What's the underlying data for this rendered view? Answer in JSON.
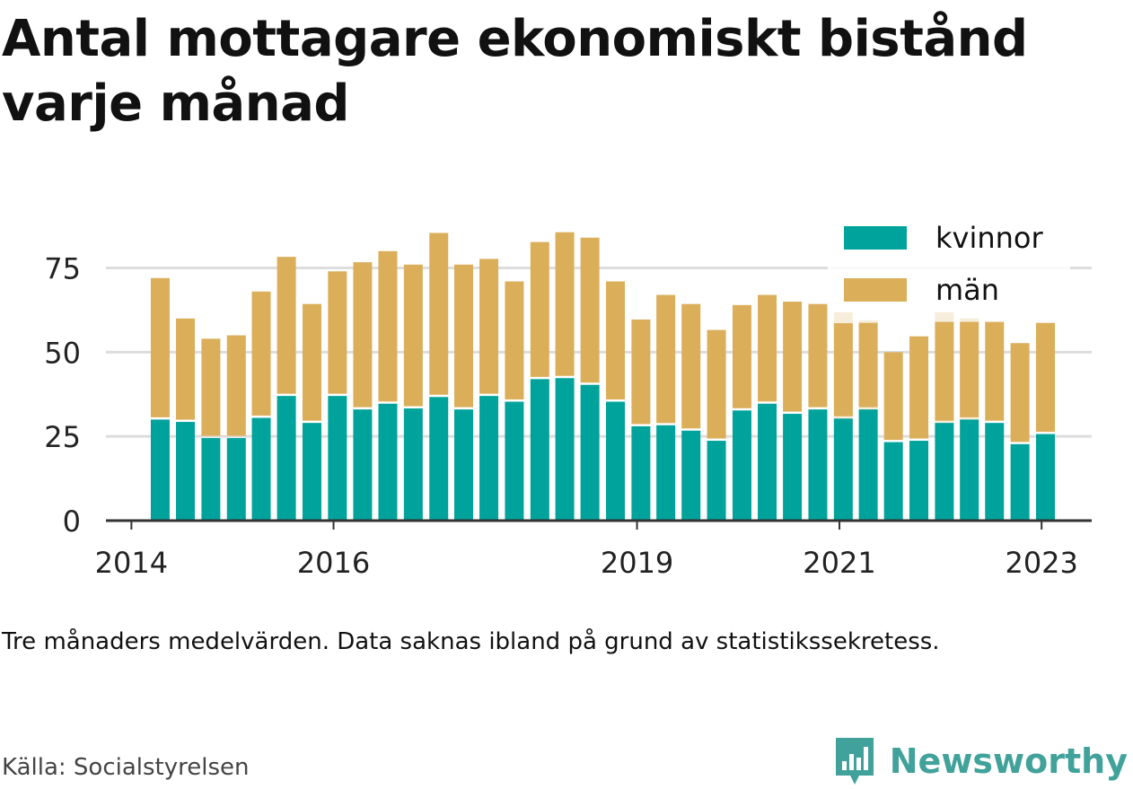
{
  "title": "Antal mottagare ekonomiskt bistånd varje månad",
  "note": "Tre månaders medelvärden. Data saknas ibland på grund av statistikssekretess.",
  "source": "Källa: Socialstyrelsen",
  "brand": {
    "name": "Newsworthy",
    "icon": "bar-chart-speech-bubble-icon",
    "color": "#40a29a"
  },
  "colors": {
    "kvinnor": "#00a39b",
    "man": "#dbae5a",
    "grid": "#dddddd",
    "axis": "#333333"
  },
  "chart_data": {
    "type": "bar",
    "stacked": true,
    "title": "Antal mottagare ekonomiskt bistånd varje månad",
    "xlabel": "",
    "ylabel": "",
    "ylim": [
      0,
      90
    ],
    "yticks": [
      0,
      25,
      50,
      75
    ],
    "grid": true,
    "legend_position": "top-right",
    "x_domain": [
      "2013-10-01",
      "2023-07-01"
    ],
    "x_ticks": [
      {
        "date": "2014-01-01",
        "label": "2014"
      },
      {
        "date": "2016-01-01",
        "label": "2016"
      },
      {
        "date": "2019-01-01",
        "label": "2019"
      },
      {
        "date": "2021-01-01",
        "label": "2021"
      },
      {
        "date": "2023-01-01",
        "label": "2023"
      }
    ],
    "categories": [
      "2014-04",
      "2014-07",
      "2014-10",
      "2015-01",
      "2015-04",
      "2015-07",
      "2015-10",
      "2016-01",
      "2016-04",
      "2016-07",
      "2016-10",
      "2017-01",
      "2017-04",
      "2017-07",
      "2017-10",
      "2018-01",
      "2018-04",
      "2018-07",
      "2018-10",
      "2019-01",
      "2019-04",
      "2019-07",
      "2019-10",
      "2020-01",
      "2020-04",
      "2020-07",
      "2020-10",
      "2021-01",
      "2021-04",
      "2021-07",
      "2021-10",
      "2022-01",
      "2022-04",
      "2022-07",
      "2022-10",
      "2023-01",
      "2023-04"
    ],
    "series": [
      {
        "name": "kvinnor",
        "values": [
          30,
          29.3,
          24.5,
          24.5,
          30.5,
          37,
          29,
          37,
          33,
          34.7,
          33.3,
          36.7,
          33,
          37,
          35.3,
          42,
          42.3,
          40.3,
          35.3,
          28,
          28.3,
          26.7,
          23.7,
          32.7,
          34.7,
          31.7,
          33,
          30.3,
          33,
          23.3,
          23.7,
          29,
          30,
          29,
          22.7,
          25.7,
          null
        ]
      },
      {
        "name": "män",
        "values": [
          42,
          30.7,
          29.5,
          30.5,
          37.5,
          41.3,
          35.3,
          37,
          43.7,
          45.3,
          42.7,
          48.7,
          43,
          40.7,
          35.7,
          40.7,
          43.3,
          43.7,
          35.7,
          31.7,
          38.7,
          37.6,
          32.9,
          31.3,
          32.3,
          33.3,
          31.3,
          28.3,
          25.7,
          26.7,
          31,
          30,
          29,
          30,
          30,
          33,
          null
        ]
      }
    ],
    "faded_totals": [
      null,
      null,
      null,
      null,
      null,
      null,
      null,
      null,
      null,
      null,
      null,
      null,
      null,
      null,
      null,
      null,
      null,
      null,
      null,
      null,
      null,
      null,
      null,
      null,
      null,
      null,
      null,
      62,
      59.5,
      null,
      null,
      62,
      60,
      null,
      null,
      null,
      null
    ]
  }
}
